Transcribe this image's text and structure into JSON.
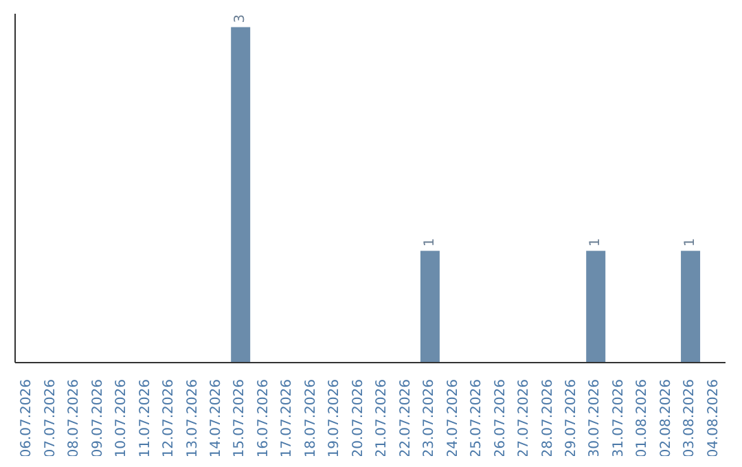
{
  "chart_data": {
    "type": "bar",
    "categories": [
      "06.07.2026",
      "07.07.2026",
      "08.07.2026",
      "09.07.2026",
      "10.07.2026",
      "11.07.2026",
      "12.07.2026",
      "13.07.2026",
      "14.07.2026",
      "15.07.2026",
      "16.07.2026",
      "17.07.2026",
      "18.07.2026",
      "19.07.2026",
      "20.07.2026",
      "21.07.2026",
      "22.07.2026",
      "23.07.2026",
      "24.07.2026",
      "25.07.2026",
      "26.07.2026",
      "27.07.2026",
      "28.07.2026",
      "29.07.2026",
      "30.07.2026",
      "31.07.2026",
      "01.08.2026",
      "02.08.2026",
      "03.08.2026",
      "04.08.2026"
    ],
    "values": [
      0,
      0,
      0,
      0,
      0,
      0,
      0,
      0,
      0,
      3,
      0,
      0,
      0,
      0,
      0,
      0,
      0,
      1,
      0,
      0,
      0,
      0,
      0,
      0,
      1,
      0,
      0,
      0,
      1,
      0
    ],
    "value_labels": [
      null,
      null,
      null,
      null,
      null,
      null,
      null,
      null,
      null,
      "3",
      null,
      null,
      null,
      null,
      null,
      null,
      null,
      "1",
      null,
      null,
      null,
      null,
      null,
      null,
      "1",
      null,
      null,
      null,
      "1",
      null
    ],
    "color": "#6b8cab",
    "grid": false,
    "legend": false
  }
}
